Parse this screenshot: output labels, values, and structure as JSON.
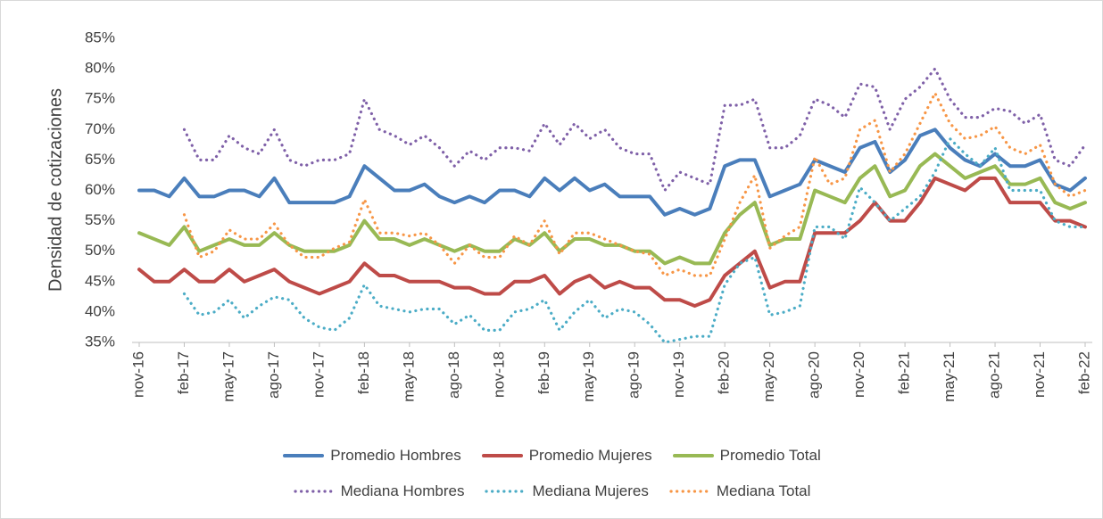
{
  "chart_data": {
    "type": "line",
    "ylabel": "Densidad de cotizaciones",
    "categories": [
      "nov-16",
      null,
      null,
      "feb-17",
      null,
      null,
      "may-17",
      null,
      null,
      "ago-17",
      null,
      null,
      "nov-17",
      null,
      null,
      "feb-18",
      null,
      null,
      "may-18",
      null,
      null,
      "ago-18",
      null,
      null,
      "nov-18",
      null,
      null,
      "feb-19",
      null,
      null,
      "may-19",
      null,
      null,
      "ago-19",
      null,
      null,
      "nov-19",
      null,
      null,
      "feb-20",
      null,
      null,
      "may-20",
      null,
      null,
      "ago-20",
      null,
      null,
      "nov-20",
      null,
      null,
      "feb-21",
      null,
      null,
      "may-21",
      null,
      null,
      "ago-21",
      null,
      null,
      "nov-21",
      null,
      null,
      "feb-22"
    ],
    "ylim": [
      35,
      85
    ],
    "yticks": [
      {
        "value": 35,
        "label": "35%"
      },
      {
        "value": 40,
        "label": "40%"
      },
      {
        "value": 45,
        "label": "45%"
      },
      {
        "value": 50,
        "label": "50%"
      },
      {
        "value": 55,
        "label": "55%"
      },
      {
        "value": 60,
        "label": "60%"
      },
      {
        "value": 65,
        "label": "65%"
      },
      {
        "value": 70,
        "label": "70%"
      },
      {
        "value": 75,
        "label": "75%"
      },
      {
        "value": 80,
        "label": "80%"
      },
      {
        "value": 85,
        "label": "85%"
      }
    ],
    "grid": false,
    "legend": "bottom",
    "series": [
      {
        "name": "Promedio Hombres",
        "color": "#4a7ebb",
        "style": "solid",
        "values": [
          60,
          60,
          59,
          62,
          59,
          59,
          60,
          60,
          59,
          62,
          58,
          58,
          58,
          58,
          59,
          64,
          62,
          60,
          60,
          61,
          59,
          58,
          59,
          58,
          60,
          60,
          59,
          62,
          60,
          62,
          60,
          61,
          59,
          59,
          59,
          56,
          57,
          56,
          57,
          64,
          65,
          65,
          59,
          60,
          61,
          65,
          64,
          63,
          67,
          68,
          63,
          65,
          69,
          70,
          67,
          65,
          64,
          66,
          64,
          64,
          65,
          61,
          60,
          62
        ]
      },
      {
        "name": "Promedio Mujeres",
        "color": "#be4b48",
        "style": "solid",
        "values": [
          47,
          45,
          45,
          47,
          45,
          45,
          47,
          45,
          46,
          47,
          45,
          44,
          43,
          44,
          45,
          48,
          46,
          46,
          45,
          45,
          45,
          44,
          44,
          43,
          43,
          45,
          45,
          46,
          43,
          45,
          46,
          44,
          45,
          44,
          44,
          42,
          42,
          41,
          42,
          46,
          48,
          50,
          44,
          45,
          45,
          53,
          53,
          53,
          55,
          58,
          55,
          55,
          58,
          62,
          61,
          60,
          62,
          62,
          58,
          58,
          58,
          55,
          55,
          54
        ]
      },
      {
        "name": "Promedio Total",
        "color": "#98b954",
        "style": "solid",
        "values": [
          53,
          52,
          51,
          54,
          50,
          51,
          52,
          51,
          51,
          53,
          51,
          50,
          50,
          50,
          51,
          55,
          52,
          52,
          51,
          52,
          51,
          50,
          51,
          50,
          50,
          52,
          51,
          53,
          50,
          52,
          52,
          51,
          51,
          50,
          50,
          48,
          49,
          48,
          48,
          53,
          56,
          58,
          51,
          52,
          52,
          60,
          59,
          58,
          62,
          64,
          59,
          60,
          64,
          66,
          64,
          62,
          63,
          64,
          61,
          61,
          62,
          58,
          57,
          58
        ]
      },
      {
        "name": "Mediana Hombres",
        "color": "#7f60a8",
        "style": "dotted",
        "values": [
          null,
          null,
          null,
          70,
          65,
          65,
          69,
          67,
          66,
          70,
          65,
          64,
          65,
          65,
          66,
          75,
          70,
          69,
          67.5,
          69,
          67,
          64,
          66.5,
          65,
          67,
          67,
          66.5,
          71,
          67.5,
          71,
          68.5,
          70,
          67,
          66,
          66,
          60,
          63,
          62,
          61,
          74,
          74,
          75,
          67,
          67,
          69,
          75,
          74,
          72,
          77.5,
          77,
          70,
          75,
          77,
          80,
          75,
          72,
          72,
          73.5,
          73,
          71,
          72.5,
          65,
          64,
          67.5
        ]
      },
      {
        "name": "Mediana Mujeres",
        "color": "#4bacc6",
        "style": "dotted",
        "values": [
          null,
          null,
          null,
          43,
          39.5,
          40,
          42,
          39,
          41,
          42.5,
          42,
          39,
          37.5,
          37,
          39,
          44.5,
          41,
          40.5,
          40,
          40.5,
          40.5,
          38,
          39.5,
          37,
          37,
          40,
          40.5,
          42,
          37,
          40,
          42,
          39,
          40.5,
          40,
          38,
          35,
          35.5,
          36,
          36,
          44.5,
          48,
          49,
          39.5,
          40,
          41,
          54,
          54,
          52,
          60.5,
          58,
          55,
          57,
          59,
          63,
          68.5,
          66,
          64,
          67,
          60,
          60,
          60,
          55,
          54,
          54
        ]
      },
      {
        "name": "Mediana Total",
        "color": "#f79646",
        "style": "dotted",
        "values": [
          null,
          null,
          null,
          56,
          49,
          50,
          53.5,
          52,
          52,
          54.5,
          51,
          49,
          49,
          50.5,
          51.5,
          58.5,
          53,
          53,
          52.5,
          53,
          51,
          48,
          51,
          49,
          49,
          52.5,
          51,
          55,
          49.5,
          53,
          53,
          52,
          51,
          50,
          49.5,
          46,
          47,
          46,
          46,
          52,
          58,
          62.5,
          50.5,
          52.5,
          54,
          65.5,
          61,
          62,
          70,
          71.5,
          63,
          66,
          71,
          76,
          71,
          68.5,
          69,
          70.5,
          67,
          66,
          67.5,
          61,
          59,
          60
        ]
      }
    ]
  }
}
